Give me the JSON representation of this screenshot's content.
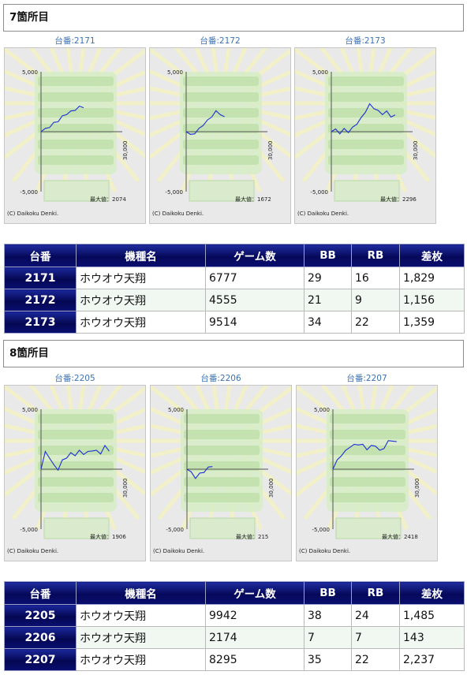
{
  "sections": [
    {
      "title": "7箇所目",
      "graphs": [
        {
          "label": "台番:2171",
          "max_label": "最大値：2074",
          "copyright": "(C) Daikoku Denki.",
          "ymax": "5,000",
          "ymin": "-5,000",
          "x_label": "30,000",
          "trend": [
            0,
            200,
            420,
            700,
            900,
            1250,
            1500,
            1650,
            1850,
            2050,
            2000
          ]
        },
        {
          "label": "台番:2172",
          "max_label": "最大値：1672",
          "copyright": "(C) Daikoku Denki.",
          "ymax": "5,000",
          "ymin": "-5,000",
          "x_label": "30,000",
          "trend": [
            0,
            -300,
            -100,
            200,
            600,
            900,
            1300,
            1670,
            1500,
            1250
          ]
        },
        {
          "label": "台番:2173",
          "max_label": "最大値：2296",
          "copyright": "(C) Daikoku Denki.",
          "ymax": "5,000",
          "ymin": "-5,000",
          "x_label": "30,000",
          "trend": [
            0,
            150,
            -100,
            200,
            0,
            300,
            700,
            1100,
            1700,
            2250,
            2000,
            1700,
            1500,
            1650,
            1300,
            1400
          ]
        }
      ],
      "table": {
        "headers": [
          "台番",
          "機種名",
          "ゲーム数",
          "BB",
          "RB",
          "差枚"
        ],
        "rows": [
          [
            "2171",
            "ホウオウ天翔",
            "6777",
            "29",
            "16",
            "1,829"
          ],
          [
            "2172",
            "ホウオウ天翔",
            "4555",
            "21",
            "9",
            "1,156"
          ],
          [
            "2173",
            "ホウオウ天翔",
            "9514",
            "34",
            "22",
            "1,359"
          ]
        ]
      }
    },
    {
      "title": "8箇所目",
      "graphs": [
        {
          "label": "台番:2205",
          "max_label": "最大値：1906",
          "copyright": "(C) Daikoku Denki.",
          "ymax": "5,000",
          "ymin": "-5,000",
          "x_label": "30,000",
          "trend": [
            0,
            1400,
            1000,
            300,
            0,
            700,
            1000,
            1300,
            1200,
            1500,
            1300,
            1400,
            1600,
            1500,
            1350,
            1900,
            1500
          ]
        },
        {
          "label": "台番:2206",
          "max_label": "最大値：215",
          "copyright": "(C) Daikoku Denki.",
          "ymax": "5,000",
          "ymin": "-5,000",
          "x_label": "30,000",
          "trend": [
            0,
            -300,
            -700,
            -400,
            -200,
            100,
            215
          ]
        },
        {
          "label": "台番:2207",
          "max_label": "最大値：2418",
          "copyright": "(C) Daikoku Denki.",
          "ymax": "5,000",
          "ymin": "-5,000",
          "x_label": "30,000",
          "trend": [
            0,
            700,
            1200,
            1500,
            1900,
            2000,
            2100,
            2000,
            1700,
            1900,
            2000,
            1500,
            1800,
            2300,
            2418,
            2300
          ]
        }
      ],
      "table": {
        "headers": [
          "台番",
          "機種名",
          "ゲーム数",
          "BB",
          "RB",
          "差枚"
        ],
        "rows": [
          [
            "2205",
            "ホウオウ天翔",
            "9942",
            "38",
            "24",
            "1,485"
          ],
          [
            "2206",
            "ホウオウ天翔",
            "2174",
            "7",
            "7",
            "143"
          ],
          [
            "2207",
            "ホウオウ天翔",
            "8295",
            "35",
            "22",
            "2,237"
          ]
        ]
      }
    }
  ],
  "colors": {
    "line": "#1b2fd6",
    "header_bg": "#06095a",
    "link": "#3b72b4"
  }
}
